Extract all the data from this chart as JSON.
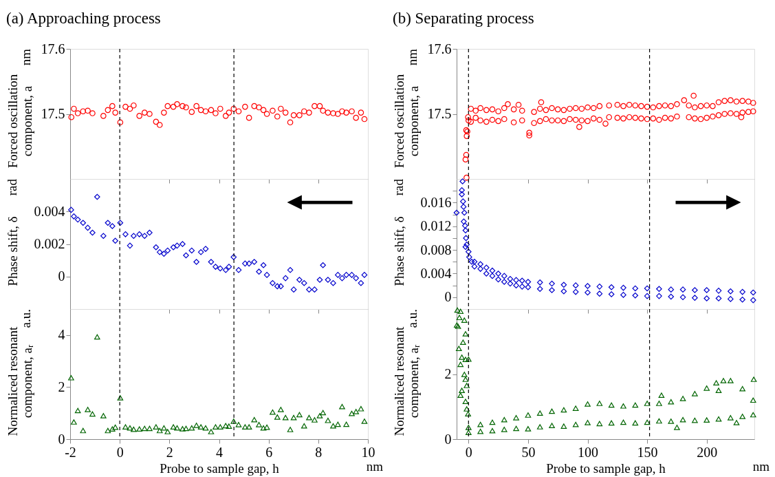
{
  "chart_data": [
    {
      "type": "scatter",
      "title": "(a)  Approaching process",
      "ylabel": "Forced oscillation component, a",
      "annotations": [
        "nm"
      ],
      "marker": "circle",
      "tick_labels": "y",
      "xlim": [
        -2,
        10
      ],
      "xticks": [
        -2,
        0,
        2,
        4,
        6,
        8,
        10
      ],
      "ylim": [
        17.4,
        17.6
      ],
      "yticks": [
        17.5,
        17.6
      ],
      "ref_lines": [
        {
          "axis": "x",
          "value": 0,
          "line_style": "dashed",
          "color": "#000000"
        },
        {
          "axis": "x",
          "value": 4.6,
          "line_style": "dashed",
          "color": "#000000"
        }
      ],
      "x": [
        -1.95,
        -1.85,
        -1.69,
        -1.48,
        -1.29,
        -1.1,
        -0.66,
        -0.48,
        -0.3,
        -0.18,
        0.02,
        0.23,
        0.41,
        0.56,
        0.79,
        1.0,
        1.2,
        1.46,
        1.61,
        1.78,
        1.93,
        2.16,
        2.31,
        2.53,
        2.67,
        2.9,
        3.09,
        3.27,
        3.46,
        3.68,
        3.86,
        4.05,
        4.27,
        4.4,
        4.59,
        4.79,
        5.05,
        5.21,
        5.42,
        5.61,
        5.79,
        5.93,
        6.16,
        6.35,
        6.49,
        6.68,
        6.87,
        7.01,
        7.24,
        7.43,
        7.63,
        7.85,
        8.06,
        8.19,
        8.39,
        8.6,
        8.79,
        8.96,
        9.13,
        9.35,
        9.52,
        9.72,
        9.86
      ],
      "series": [
        {
          "color": "#ff0000",
          "values": [
            17.495,
            17.508,
            17.501,
            17.504,
            17.505,
            17.501,
            17.497,
            17.506,
            17.512,
            17.502,
            17.487,
            17.511,
            17.508,
            17.513,
            17.497,
            17.502,
            17.5,
            17.488,
            17.483,
            17.502,
            17.512,
            17.511,
            17.515,
            17.512,
            17.51,
            17.503,
            17.512,
            17.506,
            17.504,
            17.506,
            17.501,
            17.508,
            17.497,
            17.502,
            17.508,
            17.504,
            17.511,
            17.494,
            17.512,
            17.51,
            17.506,
            17.5,
            17.505,
            17.496,
            17.508,
            17.502,
            17.487,
            17.498,
            17.498,
            17.504,
            17.502,
            17.512,
            17.512,
            17.505,
            17.502,
            17.501,
            17.5,
            17.504,
            17.502,
            17.504,
            17.494,
            17.502,
            17.492
          ]
        }
      ]
    },
    {
      "type": "scatter",
      "ylabel": "Phase shift, δ",
      "annotations": [
        "rad"
      ],
      "marker": "diamond",
      "tick_labels": "y",
      "xlim": [
        -2,
        10
      ],
      "xticks": [
        -2,
        0,
        2,
        4,
        6,
        8,
        10
      ],
      "ylim": [
        -0.002,
        0.006
      ],
      "yticks": [
        0,
        0.002,
        0.004
      ],
      "ref_lines": [
        {
          "axis": "x",
          "value": 0,
          "line_style": "dashed",
          "color": "#000000"
        },
        {
          "axis": "x",
          "value": 4.6,
          "line_style": "dashed",
          "color": "#000000"
        }
      ],
      "x": [
        -1.96,
        -1.85,
        -1.69,
        -1.48,
        -1.29,
        -1.1,
        -0.91,
        -0.66,
        -0.48,
        -0.3,
        -0.18,
        0.02,
        0.23,
        0.41,
        0.56,
        0.79,
        1.0,
        1.2,
        1.46,
        1.61,
        1.78,
        1.93,
        2.16,
        2.31,
        2.53,
        2.67,
        2.9,
        3.09,
        3.27,
        3.46,
        3.68,
        3.86,
        4.05,
        4.27,
        4.4,
        4.59,
        4.79,
        5.05,
        5.21,
        5.42,
        5.61,
        5.79,
        5.93,
        6.16,
        6.35,
        6.49,
        6.68,
        6.87,
        7.01,
        7.24,
        7.43,
        7.63,
        7.85,
        8.06,
        8.19,
        8.39,
        8.6,
        8.79,
        8.96,
        9.13,
        9.35,
        9.52,
        9.72,
        9.86
      ],
      "series": [
        {
          "color": "#0000cc",
          "values": [
            0.0041,
            0.0037,
            0.0035,
            0.0033,
            0.003,
            0.0027,
            0.0049,
            0.0025,
            0.0033,
            0.0031,
            0.0022,
            0.0033,
            0.0026,
            0.0019,
            0.0025,
            0.0026,
            0.0025,
            0.0027,
            0.0018,
            0.0015,
            0.0014,
            0.0016,
            0.0018,
            0.0019,
            0.002,
            0.0013,
            0.0016,
            0.0009,
            0.0015,
            0.0017,
            0.0009,
            0.0006,
            0.0005,
            0.0004,
            0.0006,
            0.0012,
            0.0004,
            0.0008,
            0.0008,
            0.0009,
            0.0003,
            0.0007,
            0.0001,
            -0.0004,
            -0.0006,
            -0.0006,
            -0.0001,
            0.0004,
            -0.0008,
            -0.0002,
            -0.0004,
            -0.0008,
            -0.0008,
            -0.0002,
            0.0007,
            -0.0002,
            -0.0004,
            0.0001,
            -0.0001,
            0.0001,
            0.0001,
            -0.0001,
            -0.0004,
            0.0001
          ]
        }
      ]
    },
    {
      "type": "scatter",
      "ylabel": "Normaliced resonant component, aᵣ",
      "xlabel": "Probe to sample gap, h",
      "annotations": [
        "a.u.",
        "nm"
      ],
      "marker": "triangle",
      "xlim": [
        -2,
        10
      ],
      "xticks": [
        -2,
        0,
        2,
        4,
        6,
        8,
        10
      ],
      "ylim": [
        0,
        5
      ],
      "yticks": [
        0,
        2,
        4
      ],
      "ref_lines": [
        {
          "axis": "x",
          "value": 0,
          "line_style": "dashed",
          "color": "#000000"
        },
        {
          "axis": "x",
          "value": 4.6,
          "line_style": "dashed",
          "color": "#000000"
        }
      ],
      "x": [
        -1.96,
        -1.85,
        -1.69,
        -1.48,
        -1.29,
        -1.1,
        -0.91,
        -0.66,
        -0.48,
        -0.3,
        -0.18,
        0.02,
        0.23,
        0.41,
        0.56,
        0.79,
        1.0,
        1.2,
        1.46,
        1.61,
        1.78,
        1.93,
        2.16,
        2.31,
        2.53,
        2.67,
        2.9,
        3.09,
        3.27,
        3.46,
        3.68,
        3.86,
        4.05,
        4.27,
        4.4,
        4.59,
        4.79,
        5.05,
        5.21,
        5.42,
        5.61,
        5.79,
        5.93,
        6.16,
        6.35,
        6.49,
        6.68,
        6.87,
        7.01,
        7.24,
        7.43,
        7.63,
        7.85,
        8.06,
        8.19,
        8.39,
        8.6,
        8.79,
        8.96,
        9.13,
        9.35,
        9.52,
        9.72,
        9.86
      ],
      "series": [
        {
          "color": "#006400",
          "values": [
            2.36,
            0.66,
            1.1,
            0.33,
            1.14,
            0.97,
            3.93,
            0.9,
            0.33,
            0.39,
            0.46,
            1.59,
            0.47,
            0.43,
            0.38,
            0.39,
            0.41,
            0.41,
            0.47,
            0.33,
            0.43,
            0.29,
            0.47,
            0.43,
            0.4,
            0.41,
            0.43,
            0.53,
            0.47,
            0.43,
            0.29,
            0.47,
            0.47,
            0.52,
            0.5,
            0.69,
            0.56,
            0.47,
            0.47,
            0.75,
            0.56,
            0.43,
            0.46,
            1.04,
            0.85,
            1.14,
            0.83,
            0.37,
            0.83,
            0.94,
            0.51,
            0.83,
            0.74,
            0.9,
            1.02,
            0.72,
            0.51,
            0.57,
            1.25,
            0.57,
            0.99,
            1.06,
            1.17,
            0.69
          ]
        }
      ]
    },
    {
      "type": "scatter",
      "title": "(b)  Separating process",
      "ylabel": "Forced oscillation component, a",
      "annotations": [
        "nm"
      ],
      "marker": "circle",
      "tick_labels": "y",
      "xlim": [
        -10,
        240
      ],
      "xticks": [
        0,
        50,
        100,
        150,
        200
      ],
      "ylim": [
        17.4,
        17.6
      ],
      "yticks": [
        17.5,
        17.6
      ],
      "ref_lines": [
        {
          "axis": "x",
          "value": 0,
          "line_style": "dashed",
          "color": "#000000"
        },
        {
          "axis": "x",
          "value": 152,
          "line_style": "dashed",
          "color": "#000000"
        }
      ],
      "x": [
        -2.5,
        -1.9,
        -1.9,
        -1.5,
        -1.0,
        -1.7,
        -0.4,
        0,
        2,
        2,
        6,
        6,
        10,
        10,
        15,
        15,
        20,
        20,
        25,
        25,
        30,
        30,
        33,
        38,
        38,
        42,
        45,
        45,
        51,
        51,
        55,
        55,
        60,
        60,
        61,
        65,
        65,
        70,
        70,
        75,
        75,
        80,
        80,
        85,
        85,
        90,
        90,
        93,
        95,
        95,
        100,
        100,
        105,
        105,
        110,
        110,
        115,
        118,
        118,
        125,
        125,
        130,
        130,
        135,
        135,
        140,
        140,
        145,
        145,
        150,
        150,
        155,
        155,
        160,
        160,
        165,
        165,
        170,
        170,
        175,
        175,
        181,
        185,
        185,
        189,
        190,
        190,
        195,
        195,
        200,
        200,
        205,
        205,
        210,
        210,
        215,
        215,
        220,
        220,
        225,
        225,
        229,
        230,
        230,
        235,
        235,
        239,
        239
      ],
      "series": [
        {
          "color": "#ff0000",
          "values": [
            17.43,
            17.437,
            17.475,
            17.466,
            17.473,
            17.402,
            17.495,
            17.49,
            17.508,
            17.488,
            17.505,
            17.494,
            17.509,
            17.49,
            17.506,
            17.488,
            17.507,
            17.491,
            17.504,
            17.489,
            17.509,
            17.492,
            17.515,
            17.507,
            17.487,
            17.514,
            17.505,
            17.49,
            17.471,
            17.467,
            17.503,
            17.486,
            17.508,
            17.489,
            17.518,
            17.506,
            17.492,
            17.509,
            17.49,
            17.507,
            17.49,
            17.506,
            17.489,
            17.508,
            17.492,
            17.509,
            17.491,
            17.48,
            17.508,
            17.49,
            17.51,
            17.489,
            17.509,
            17.493,
            17.512,
            17.491,
            17.485,
            17.513,
            17.495,
            17.514,
            17.494,
            17.512,
            17.493,
            17.514,
            17.495,
            17.513,
            17.494,
            17.512,
            17.493,
            17.511,
            17.492,
            17.51,
            17.493,
            17.512,
            17.491,
            17.513,
            17.494,
            17.512,
            17.493,
            17.515,
            17.496,
            17.521,
            17.513,
            17.495,
            17.528,
            17.51,
            17.493,
            17.512,
            17.492,
            17.513,
            17.494,
            17.512,
            17.496,
            17.518,
            17.498,
            17.52,
            17.5,
            17.521,
            17.501,
            17.519,
            17.5,
            17.495,
            17.52,
            17.502,
            17.519,
            17.503,
            17.517,
            17.504
          ]
        }
      ]
    },
    {
      "type": "scatter",
      "ylabel": "Phase shift, δ",
      "annotations": [
        "rad"
      ],
      "marker": "diamond",
      "tick_labels": "y",
      "xlim": [
        -10,
        240
      ],
      "xticks": [
        0,
        50,
        100,
        150,
        200
      ],
      "ylim": [
        -0.002,
        0.02
      ],
      "yticks": [
        0,
        {
          "value": 0.002,
          "label": null
        },
        0.004,
        {
          "value": 0.006,
          "label": null
        },
        0.008,
        {
          "value": 0.01,
          "label": null
        },
        0.012,
        {
          "value": 0.014,
          "label": null
        },
        0.016,
        {
          "value": 0.018,
          "label": null
        }
      ],
      "ref_lines": [
        {
          "axis": "x",
          "value": 0,
          "line_style": "dashed",
          "color": "#000000"
        },
        {
          "axis": "x",
          "value": 152,
          "line_style": "dashed",
          "color": "#000000"
        }
      ],
      "x": [
        -10,
        -5.6,
        -5,
        -5.6,
        -4.6,
        -4.2,
        -3.5,
        -4,
        -2.9,
        -2.5,
        -2.1,
        -2.5,
        -1.5,
        0,
        0.6,
        2.7,
        5,
        5,
        10,
        10,
        15,
        15,
        20,
        20,
        25,
        25,
        30,
        30,
        35,
        35,
        40,
        40,
        45,
        45,
        50,
        50,
        60,
        60,
        70,
        70,
        80,
        80,
        90,
        90,
        100,
        100,
        110,
        110,
        120,
        120,
        130,
        130,
        140,
        140,
        150,
        150,
        160,
        160,
        170,
        170,
        180,
        180,
        190,
        190,
        200,
        200,
        210,
        210,
        220,
        220,
        230,
        230,
        239,
        239
      ],
      "series": [
        {
          "color": "#0000cc",
          "values": [
            0.0143,
            0.0181,
            0.0196,
            0.0174,
            0.0162,
            0.0153,
            0.0143,
            0.0128,
            0.0121,
            0.0113,
            0.01,
            0.0085,
            0.0089,
            0.0077,
            0.0068,
            0.006,
            0.006,
            0.0052,
            0.0056,
            0.0048,
            0.005,
            0.004,
            0.0045,
            0.0036,
            0.004,
            0.003,
            0.0036,
            0.0026,
            0.0031,
            0.0023,
            0.0029,
            0.002,
            0.0028,
            0.0018,
            0.0026,
            0.0017,
            0.0025,
            0.0014,
            0.0023,
            0.0012,
            0.0021,
            0.001,
            0.002,
            0.0009,
            0.0019,
            0.0008,
            0.0018,
            0.0006,
            0.0017,
            0.0005,
            0.0016,
            0.0004,
            0.0015,
            0.0003,
            0.0015,
            0.0002,
            0.0014,
            0.0002,
            0.0013,
            0.0001,
            0.0013,
            0,
            0.0012,
            -0.0001,
            0.0012,
            -0.0002,
            0.0011,
            -0.0002,
            0.001,
            -0.0003,
            0.0009,
            -0.0004,
            0.0008,
            -0.0005
          ]
        }
      ]
    },
    {
      "type": "scatter",
      "ylabel": "Normaliced resonant component, aᵣ",
      "xlabel": "Probe to sample gap, h",
      "annotations": [
        "a.u.",
        "nm"
      ],
      "marker": "triangle",
      "xlim": [
        -10,
        240
      ],
      "xticks": [
        0,
        50,
        100,
        150,
        200
      ],
      "ylim": [
        0,
        4
      ],
      "yticks": [
        0,
        2
      ],
      "ref_lines": [
        {
          "axis": "x",
          "value": 0,
          "line_style": "dashed",
          "color": "#000000"
        },
        {
          "axis": "x",
          "value": 152,
          "line_style": "dashed",
          "color": "#000000"
        }
      ],
      "x": [
        -9.4,
        -6.7,
        -8.8,
        -7.7,
        -3.5,
        -2.5,
        -4.6,
        -8.1,
        -5.6,
        -6.7,
        -2.5,
        0,
        -3.5,
        -2.5,
        -5.6,
        -6.7,
        -2.5,
        -1.5,
        -0.4,
        -1.5,
        -9.8,
        0,
        0,
        10,
        10,
        20,
        20,
        30,
        30,
        40,
        40,
        50,
        50,
        60,
        60,
        70,
        70,
        80,
        80,
        90,
        90,
        100,
        100,
        110,
        110,
        120,
        120,
        130,
        130,
        140,
        140,
        150,
        150,
        160,
        160,
        170,
        170,
        180,
        180,
        190,
        190,
        200,
        200,
        210,
        210,
        220,
        220,
        230,
        230,
        239,
        239,
        208,
        214,
        239.5,
        162,
        225,
        175
      ],
      "series": [
        {
          "color": "#006400",
          "values": [
            3.97,
            3.93,
            3.47,
            3.74,
            3.66,
            3.24,
            2.98,
            2.79,
            2.52,
            2.3,
            2.45,
            2.46,
            1.99,
            1.84,
            1.5,
            1.35,
            1.16,
            0.93,
            0.78,
            1.65,
            3.51,
            0.36,
            0.21,
            0.45,
            0.24,
            0.52,
            0.26,
            0.6,
            0.3,
            0.66,
            0.33,
            0.74,
            0.32,
            0.8,
            0.38,
            0.86,
            0.42,
            0.9,
            0.4,
            0.95,
            0.45,
            1.08,
            0.51,
            1.1,
            0.48,
            1.05,
            0.5,
            1.02,
            0.52,
            1.05,
            0.5,
            1.1,
            0.52,
            1.1,
            0.56,
            1.15,
            0.55,
            1.25,
            0.6,
            1.4,
            0.58,
            1.57,
            0.59,
            1.5,
            0.62,
            1.8,
            0.66,
            1.55,
            0.7,
            1.2,
            0.75,
            1.73,
            1.8,
            1.84,
            1.35,
            0.51,
            0.36
          ]
        }
      ]
    }
  ]
}
